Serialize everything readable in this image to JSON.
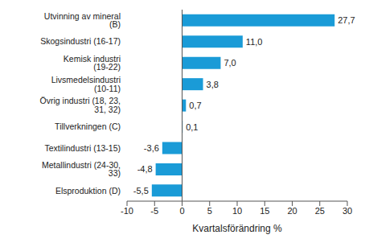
{
  "chart_data": {
    "type": "bar",
    "orientation": "horizontal",
    "categories": [
      "Utvinning av mineral (B)",
      "Skogsindustri (16-17)",
      "Kemisk industri (19-22)",
      "Livsmedelsindustri (10-11)",
      "Övrig industri (18, 23, 31, 32)",
      "Tillverkningen (C)",
      "Textilindustri (13-15)",
      "Metallindustri (24-30, 33)",
      "Elsproduktion (D)"
    ],
    "values": [
      27.7,
      11.0,
      7.0,
      3.8,
      0.7,
      0.1,
      -3.6,
      -4.8,
      -5.5
    ],
    "value_labels": [
      "27,7",
      "11,0",
      "7,0",
      "3,8",
      "0,7",
      "0,1",
      "-3,6",
      "-4,8",
      "-5,5"
    ],
    "data_labels": true,
    "color": "#1a9bd7",
    "x_label": "Kvartalsförändring %",
    "xlim": [
      -10,
      30
    ],
    "xticks": [
      -10,
      -5,
      0,
      5,
      10,
      15,
      20,
      25,
      30
    ],
    "grid": false
  }
}
